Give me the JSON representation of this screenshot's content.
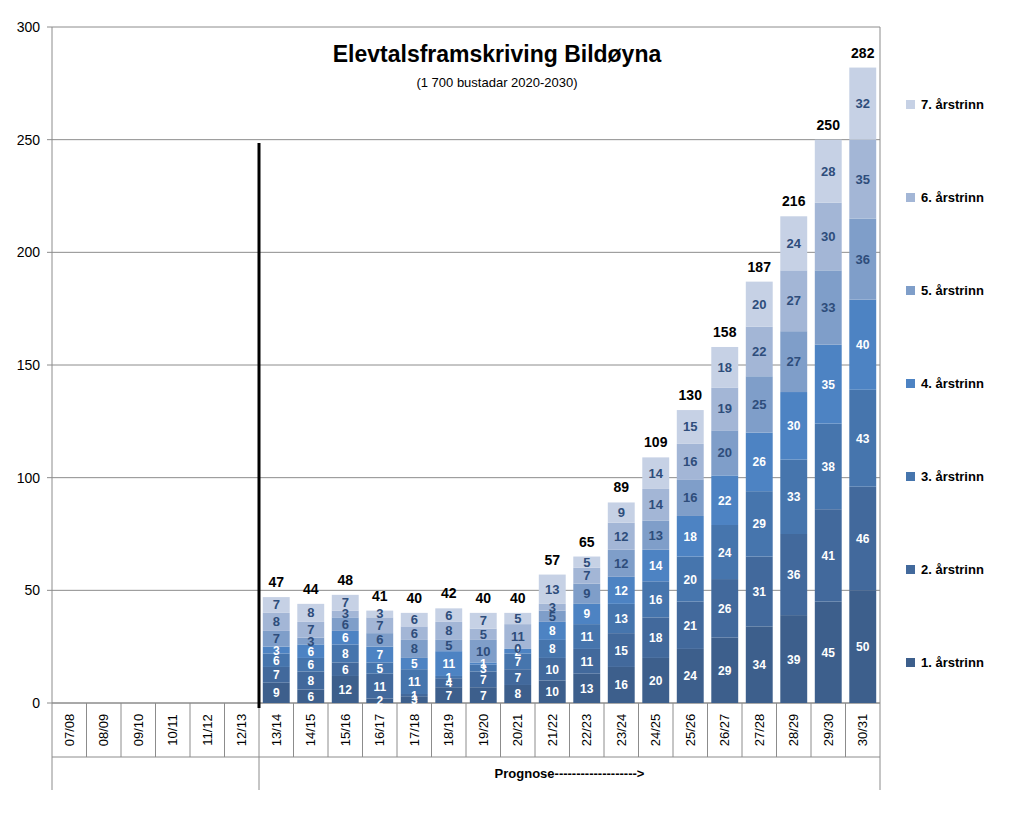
{
  "chart_data": {
    "type": "bar",
    "stacked": true,
    "data_labels": true,
    "grid": true,
    "legend": "right",
    "title": "Elevtalsframskriving Bildøyna",
    "subtitle": "(1 700 bustadar 2020-2030)",
    "x_label": "Prognose------------------->",
    "categories": [
      "07/08",
      "08/09",
      "09/10",
      "10/11",
      "11/12",
      "12/13",
      "13/14",
      "14/15",
      "15/16",
      "16/17",
      "17/18",
      "18/19",
      "19/20",
      "20/21",
      "21/22",
      "22/23",
      "23/24",
      "24/25",
      "25/26",
      "26/27",
      "27/28",
      "28/29",
      "29/30",
      "30/31"
    ],
    "ylim": [
      0,
      300
    ],
    "yticks": [
      0,
      50,
      100,
      150,
      200,
      250,
      300
    ],
    "totals": [
      null,
      null,
      null,
      null,
      null,
      null,
      47,
      44,
      48,
      41,
      40,
      42,
      40,
      40,
      57,
      65,
      89,
      109,
      130,
      158,
      187,
      216,
      250,
      282
    ],
    "series": [
      {
        "name": "1. årstrinn",
        "color": "#3d5f8c",
        "values": [
          null,
          null,
          null,
          null,
          null,
          null,
          9,
          6,
          12,
          2,
          3,
          7,
          7,
          8,
          10,
          13,
          16,
          20,
          24,
          29,
          34,
          39,
          45,
          50
        ]
      },
      {
        "name": "2. årstrinn",
        "color": "#42699c",
        "values": [
          null,
          null,
          null,
          null,
          null,
          null,
          7,
          8,
          6,
          11,
          1,
          4,
          7,
          7,
          10,
          11,
          15,
          18,
          21,
          26,
          31,
          36,
          41,
          46
        ]
      },
      {
        "name": "3. årstrinn",
        "color": "#4675ad",
        "values": [
          null,
          null,
          null,
          null,
          null,
          null,
          6,
          6,
          8,
          5,
          11,
          1,
          3,
          7,
          8,
          11,
          13,
          16,
          20,
          24,
          29,
          33,
          38,
          43
        ]
      },
      {
        "name": "4. årstrinn",
        "color": "#4d83c3",
        "values": [
          null,
          null,
          null,
          null,
          null,
          null,
          3,
          6,
          6,
          7,
          5,
          11,
          1,
          2,
          8,
          9,
          12,
          14,
          18,
          22,
          26,
          30,
          35,
          40
        ]
      },
      {
        "name": "5. årstrinn",
        "color": "#7f9ec9",
        "values": [
          null,
          null,
          null,
          null,
          null,
          null,
          7,
          3,
          6,
          6,
          8,
          5,
          10,
          0,
          5,
          9,
          12,
          13,
          16,
          20,
          25,
          27,
          33,
          36
        ]
      },
      {
        "name": "6. årstrinn",
        "color": "#a3b6d6",
        "values": [
          null,
          null,
          null,
          null,
          null,
          null,
          8,
          7,
          3,
          7,
          6,
          8,
          5,
          11,
          3,
          7,
          12,
          14,
          16,
          19,
          22,
          27,
          30,
          35
        ]
      },
      {
        "name": "7. årstrinn",
        "color": "#c6d1e5",
        "values": [
          null,
          null,
          null,
          null,
          null,
          null,
          7,
          8,
          7,
          3,
          6,
          6,
          7,
          5,
          13,
          5,
          9,
          14,
          15,
          18,
          20,
          24,
          28,
          32
        ]
      }
    ]
  }
}
